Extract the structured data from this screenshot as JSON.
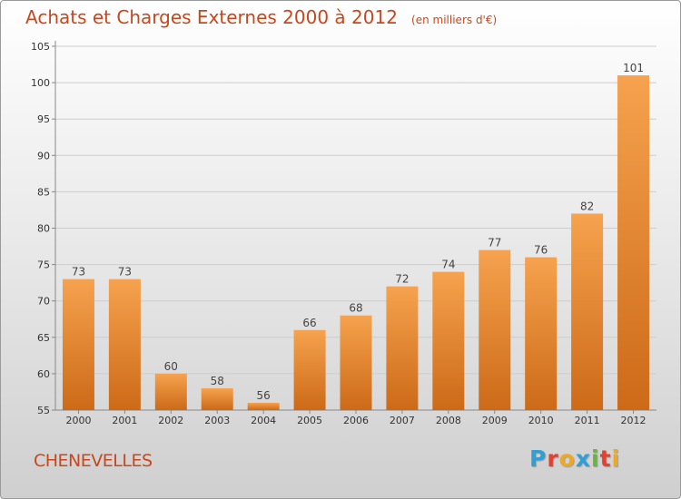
{
  "chart_data": {
    "type": "bar",
    "title": "Achats et Charges Externes 2000 à 2012",
    "unit_label": "(en milliers d'€)",
    "categories": [
      "2000",
      "2001",
      "2002",
      "2003",
      "2004",
      "2005",
      "2006",
      "2007",
      "2008",
      "2009",
      "2010",
      "2011",
      "2012"
    ],
    "values": [
      73,
      73,
      60,
      58,
      56,
      66,
      68,
      72,
      74,
      77,
      76,
      82,
      101
    ],
    "value_labels": [
      "73",
      "73",
      "60",
      "58",
      "56",
      "66",
      "68",
      "72",
      "74",
      "77",
      "76",
      "82",
      "101"
    ],
    "yticks": [
      "55",
      "60",
      "65",
      "70",
      "75",
      "80",
      "85",
      "90",
      "95",
      "100",
      "105"
    ],
    "ylim": [
      55,
      105
    ],
    "grid": true,
    "bar_color_top": "#f6a24e",
    "bar_color_bottom": "#cc6a18",
    "grid_color": "#cccccc"
  },
  "footer": {
    "commune": "CHENEVELLES",
    "logo_letters": [
      "P",
      "r",
      "o",
      "x",
      "i",
      "t",
      "i"
    ],
    "logo_colors": [
      "#2f9fd6",
      "#e2412f",
      "#f0a91e",
      "#2f9fd6",
      "#6cb33f",
      "#e2412f",
      "#f0a91e"
    ],
    "title_color": "#c8471c"
  }
}
